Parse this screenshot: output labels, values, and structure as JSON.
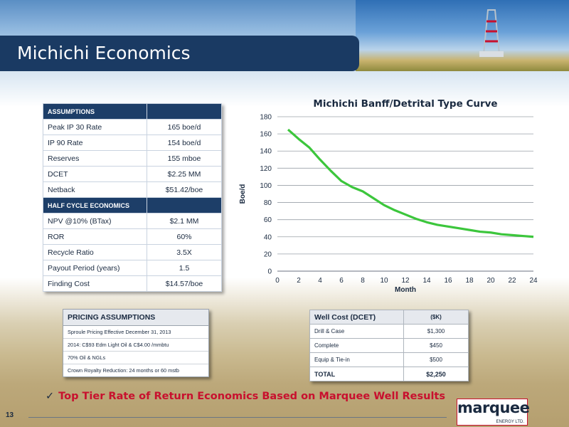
{
  "slide": {
    "title": "Michichi Economics",
    "page_number": "13",
    "bullet": "Top Tier Rate of Return Economics Based on Marquee Well Results",
    "check_glyph": "✓"
  },
  "logo": {
    "name": "marquee",
    "sub": "ENERGY LTD."
  },
  "assumptions": {
    "section1": "ASSUMPTIONS",
    "rows1": [
      {
        "label": "Peak IP 30 Rate",
        "value": "165 boe/d"
      },
      {
        "label": "IP 90 Rate",
        "value": "154 boe/d"
      },
      {
        "label": "Reserves",
        "value": "155 mboe"
      },
      {
        "label": "DCET",
        "value": "$2.25 MM"
      },
      {
        "label": "Netback",
        "value": "$51.42/boe"
      }
    ],
    "section2": "HALF CYCLE ECONOMICS",
    "rows2": [
      {
        "label": "NPV @10% (BTax)",
        "value": "$2.1 MM"
      },
      {
        "label": "ROR",
        "value": "60%"
      },
      {
        "label": "Recycle Ratio",
        "value": "3.5X"
      },
      {
        "label": "Payout Period  (years)",
        "value": "1.5"
      },
      {
        "label": "Finding Cost",
        "value": "$14.57/boe"
      }
    ]
  },
  "pricing": {
    "header": "PRICING ASSUMPTIONS",
    "rows": [
      "Sproule Pricing Effective December 31, 2013",
      "2014: C$93 Edm Light Oil  & C$4.00 /mmbtu",
      "70% Oil & NGLs",
      "Crown Royalty Reduction: 24 months or 60 mstb"
    ]
  },
  "well_cost": {
    "header_label": "Well Cost (DCET)",
    "header_unit": "($K)",
    "rows": [
      {
        "label": "Drill & Case",
        "value": "$1,300"
      },
      {
        "label": "Complete",
        "value": "$450"
      },
      {
        "label": "Equip & Tie-in",
        "value": "$500"
      }
    ],
    "total_label": "TOTAL",
    "total_value": "$2,250"
  },
  "colors": {
    "navy": "#1a3a63",
    "line": "#3cc63c",
    "accent_red": "#c8102e"
  },
  "chart_data": {
    "type": "line",
    "title": "Michichi Banff/Detrital Type Curve",
    "xlabel": "Month",
    "ylabel": "Boe/d",
    "xlim": [
      0,
      24
    ],
    "ylim": [
      0,
      180
    ],
    "xticks": [
      0,
      2,
      4,
      6,
      8,
      10,
      12,
      14,
      16,
      18,
      20,
      22,
      24
    ],
    "yticks": [
      0,
      20,
      40,
      60,
      80,
      100,
      120,
      140,
      160,
      180
    ],
    "grid": true,
    "legend": "none",
    "series": [
      {
        "x": [
          1,
          2,
          3,
          4,
          5,
          6,
          7,
          8,
          9,
          10,
          11,
          12,
          13,
          14,
          15,
          16,
          17,
          18,
          19,
          20,
          21,
          22,
          23,
          24
        ],
        "values": [
          165,
          154,
          144,
          130,
          117,
          105,
          98,
          93,
          85,
          77,
          71,
          66,
          61,
          57,
          54,
          52,
          50,
          48,
          46,
          45,
          43,
          42,
          41,
          40
        ]
      }
    ]
  }
}
